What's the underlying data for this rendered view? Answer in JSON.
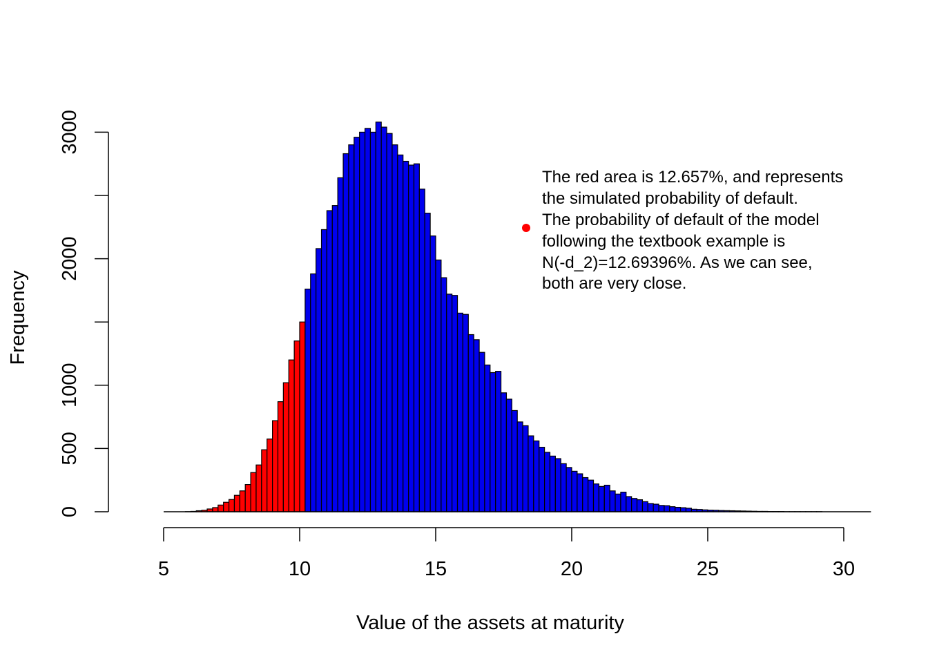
{
  "chart_data": {
    "type": "bar",
    "title": "",
    "xlabel": "Value of the assets at maturity",
    "ylabel": "Frequency",
    "xlim": [
      5,
      31
    ],
    "ylim": [
      0,
      3100
    ],
    "x_ticks": [
      5,
      10,
      15,
      20,
      25,
      30
    ],
    "y_ticks": [
      0,
      500,
      1000,
      1500,
      2000,
      2500,
      3000
    ],
    "y_tick_labels": [
      "0",
      "500",
      "1000",
      "",
      "2000",
      "",
      "3000"
    ],
    "bin_width": 0.2,
    "bin_start": 5.2,
    "default_threshold": 10.2,
    "colors": {
      "default": "#ff0000",
      "non_default": "#0000ee",
      "bar_border": "#000000",
      "legend_dot": "#ff0000"
    },
    "values": [
      0,
      0,
      0,
      1,
      3,
      8,
      12,
      22,
      33,
      53,
      75,
      97,
      130,
      165,
      215,
      310,
      370,
      490,
      575,
      720,
      870,
      1020,
      1200,
      1350,
      1500,
      1760,
      1880,
      2080,
      2230,
      2380,
      2420,
      2640,
      2830,
      2900,
      2960,
      3000,
      3030,
      3000,
      3080,
      3040,
      2990,
      2900,
      2820,
      2770,
      2740,
      2750,
      2550,
      2360,
      2180,
      1990,
      1850,
      1720,
      1710,
      1570,
      1560,
      1400,
      1360,
      1260,
      1160,
      1100,
      1110,
      940,
      890,
      800,
      710,
      680,
      600,
      560,
      510,
      470,
      440,
      420,
      380,
      350,
      320,
      300,
      270,
      250,
      220,
      200,
      210,
      165,
      140,
      155,
      120,
      105,
      95,
      80,
      65,
      60,
      50,
      48,
      40,
      35,
      32,
      28,
      20,
      18,
      15,
      13,
      12,
      10,
      9,
      8,
      7,
      6,
      5,
      4,
      3,
      3,
      2,
      2,
      2,
      1,
      1,
      1,
      1,
      1,
      1,
      1
    ],
    "legend": {
      "placement": "upper-right",
      "text": [
        "The red area is 12.657%, and represents",
        "the simulated probability of default.",
        "The probability of default of the model",
        "following the textbook example is",
        "N(-d_2)=12.69396%. As we can see,",
        "both are very close."
      ]
    }
  }
}
